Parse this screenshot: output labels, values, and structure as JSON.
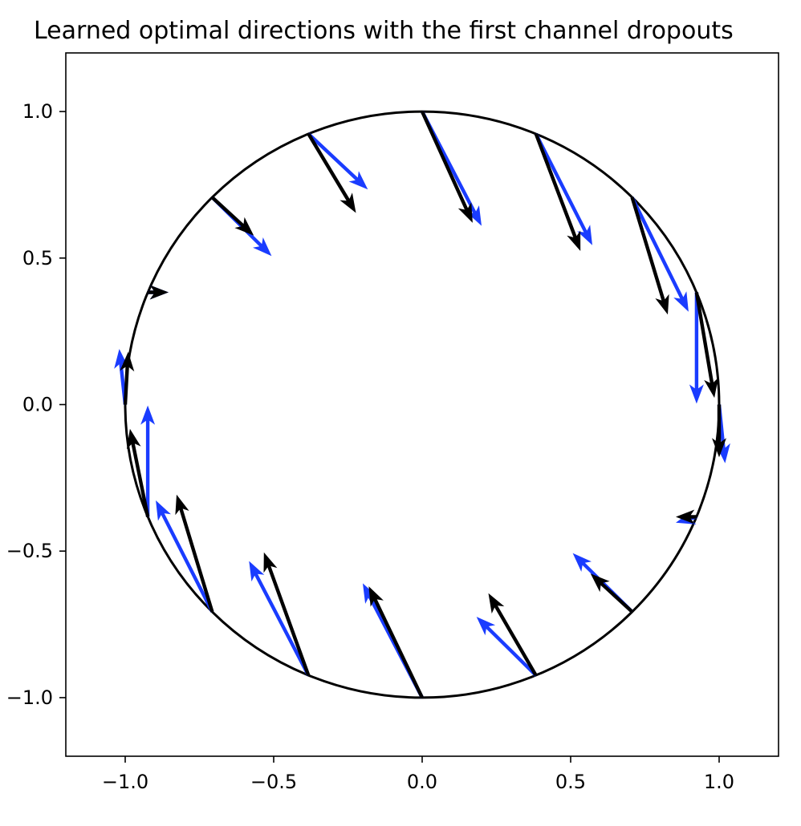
{
  "chart_data": {
    "type": "quiver",
    "title": "Learned optimal directions with the first channel dropouts",
    "xlabel": "",
    "ylabel": "",
    "xlim": [
      -1.2,
      1.2
    ],
    "ylim": [
      -1.2,
      1.2
    ],
    "xticks": [
      -1.0,
      -0.5,
      0.0,
      0.5,
      1.0
    ],
    "yticks": [
      -1.0,
      -0.5,
      0.0,
      0.5,
      1.0
    ],
    "xtick_labels": [
      "−1.0",
      "−0.5",
      "0.0",
      "0.5",
      "1.0"
    ],
    "ytick_labels": [
      "−1.0",
      "−0.5",
      "0.0",
      "0.5",
      "1.0"
    ],
    "grid": false,
    "circle": {
      "center": [
        0,
        0
      ],
      "radius": 1.0,
      "color": "#000000"
    },
    "series": [
      {
        "color": "#1a3cff",
        "arrows": [
          {
            "x": 1.0,
            "y": 0.0,
            "u": 0.02,
            "v": -0.2
          },
          {
            "x": 0.924,
            "y": 0.383,
            "u": 0.0,
            "v": -0.38
          },
          {
            "x": 0.707,
            "y": 0.707,
            "u": 0.19,
            "v": -0.39
          },
          {
            "x": 0.383,
            "y": 0.924,
            "u": 0.19,
            "v": -0.38
          },
          {
            "x": 0.0,
            "y": 1.0,
            "u": 0.2,
            "v": -0.39
          },
          {
            "x": -0.383,
            "y": 0.924,
            "u": 0.2,
            "v": -0.19
          },
          {
            "x": -0.707,
            "y": 0.707,
            "u": 0.2,
            "v": -0.2
          },
          {
            "x": -0.924,
            "y": 0.383,
            "u": 0.07,
            "v": 0.0
          },
          {
            "x": -1.0,
            "y": 0.0,
            "u": -0.02,
            "v": 0.19
          },
          {
            "x": -0.924,
            "y": -0.383,
            "u": 0.0,
            "v": 0.38
          },
          {
            "x": -0.707,
            "y": -0.707,
            "u": -0.19,
            "v": 0.38
          },
          {
            "x": -0.383,
            "y": -0.924,
            "u": -0.2,
            "v": 0.39
          },
          {
            "x": 0.0,
            "y": -1.0,
            "u": -0.2,
            "v": 0.39
          },
          {
            "x": 0.383,
            "y": -0.924,
            "u": -0.2,
            "v": 0.2
          },
          {
            "x": 0.707,
            "y": -0.707,
            "u": -0.2,
            "v": 0.2
          },
          {
            "x": 0.924,
            "y": -0.383,
            "u": -0.07,
            "v": -0.02
          }
        ]
      },
      {
        "color": "#000000",
        "arrows": [
          {
            "x": 1.0,
            "y": 0.0,
            "u": 0.0,
            "v": -0.18
          },
          {
            "x": 0.924,
            "y": 0.383,
            "u": 0.06,
            "v": -0.36
          },
          {
            "x": 0.707,
            "y": 0.707,
            "u": 0.12,
            "v": -0.4
          },
          {
            "x": 0.383,
            "y": 0.924,
            "u": 0.15,
            "v": -0.4
          },
          {
            "x": 0.0,
            "y": 1.0,
            "u": 0.17,
            "v": -0.38
          },
          {
            "x": -0.383,
            "y": 0.924,
            "u": 0.16,
            "v": -0.27
          },
          {
            "x": -0.707,
            "y": 0.707,
            "u": 0.14,
            "v": -0.13
          },
          {
            "x": -0.924,
            "y": 0.383,
            "u": 0.07,
            "v": 0.0
          },
          {
            "x": -1.0,
            "y": 0.0,
            "u": 0.01,
            "v": 0.18
          },
          {
            "x": -0.924,
            "y": -0.383,
            "u": -0.06,
            "v": 0.3
          },
          {
            "x": -0.707,
            "y": -0.707,
            "u": -0.12,
            "v": 0.4
          },
          {
            "x": -0.383,
            "y": -0.924,
            "u": -0.15,
            "v": 0.42
          },
          {
            "x": 0.0,
            "y": -1.0,
            "u": -0.18,
            "v": 0.38
          },
          {
            "x": 0.383,
            "y": -0.924,
            "u": -0.16,
            "v": 0.28
          },
          {
            "x": 0.707,
            "y": -0.707,
            "u": -0.14,
            "v": 0.13
          },
          {
            "x": 0.924,
            "y": -0.383,
            "u": -0.07,
            "v": 0.0
          }
        ]
      }
    ]
  }
}
